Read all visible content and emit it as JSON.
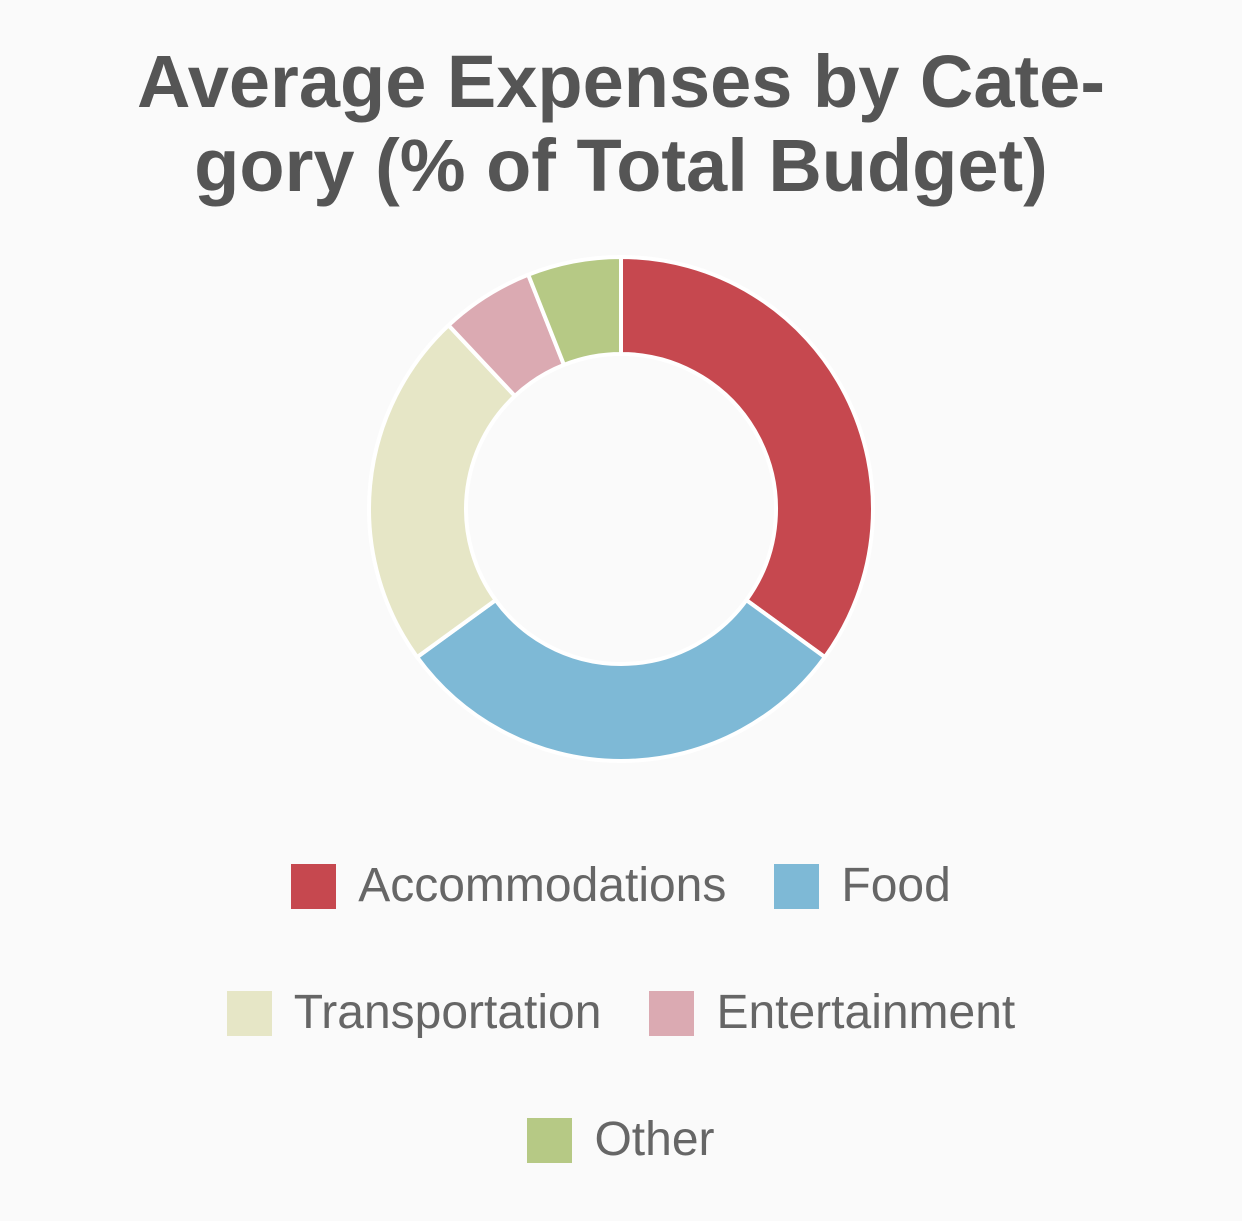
{
  "chart_data": {
    "type": "pie",
    "variant": "donut",
    "title": "Average Expenses by Cate-\ngory (% of Total Budget)",
    "categories": [
      "Accommodations",
      "Food",
      "Transportation",
      "Entertainment",
      "Other"
    ],
    "values": [
      35,
      30,
      23,
      6,
      6
    ],
    "unit": "% of Total Budget",
    "colors": [
      "#c6484f",
      "#7eb9d6",
      "#e6e6c6",
      "#dbaab2",
      "#b6c985"
    ],
    "legend_placement": "bottom"
  }
}
